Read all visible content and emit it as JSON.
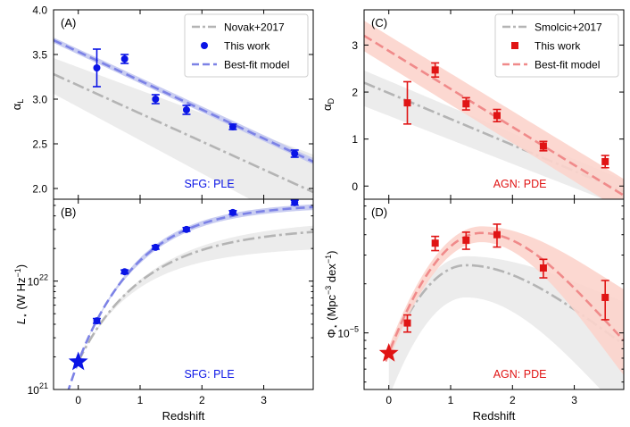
{
  "figure": {
    "xlabel": "Redshift"
  },
  "chart_data": [
    {
      "id": "A",
      "type": "scatter",
      "panel_label": "(A)",
      "annotation": "SFG: PLE",
      "ylabel": "αL",
      "ylabel_main": "α",
      "ylabel_sub": "L",
      "xlim": [
        -0.4,
        3.8
      ],
      "ylim": [
        1.88,
        4.0
      ],
      "yscale": "linear",
      "xticks": [
        0,
        1,
        2,
        3
      ],
      "yticks": [
        2.0,
        2.5,
        3.0,
        3.5,
        4.0
      ],
      "ytick_labels": [
        "2.0",
        "2.5",
        "3.0",
        "3.5",
        "4.0"
      ],
      "legend": [
        "Novak+2017",
        "This work",
        "Best-fit model"
      ],
      "ref": {
        "name": "Novak+2017",
        "x": [
          -0.4,
          3.8
        ],
        "y": [
          3.28,
          1.96
        ],
        "band_lo": [
          3.06,
          1.5
        ],
        "band_hi": [
          3.46,
          2.38
        ]
      },
      "fit": {
        "name": "Best-fit model",
        "x": [
          -0.4,
          3.8
        ],
        "y": [
          3.66,
          2.3
        ],
        "band_lo": [
          3.63,
          2.27
        ],
        "band_hi": [
          3.69,
          2.34
        ]
      },
      "points": {
        "name": "This work",
        "marker": "circle",
        "x": [
          0.3,
          0.75,
          1.25,
          1.75,
          2.5,
          3.5
        ],
        "y": [
          3.35,
          3.45,
          3.0,
          2.88,
          2.69,
          2.39
        ],
        "err": [
          0.21,
          0.05,
          0.05,
          0.05,
          0.03,
          0.04
        ]
      }
    },
    {
      "id": "B",
      "type": "scatter",
      "panel_label": "(B)",
      "annotation": "SFG: PLE",
      "ylabel": "L⋆ (W Hz⁻¹)",
      "ylabel_main": "L",
      "ylabel_sub": "⋆",
      "ylabel_unit": "(W Hz",
      "ylabel_sup": "−1",
      "ylabel_close": ")",
      "xlim": [
        -0.4,
        3.8
      ],
      "ylim": [
        1e+21,
        5.7e+22
      ],
      "yscale": "log",
      "xticks": [
        0,
        1,
        2,
        3
      ],
      "xtick_labels": [
        "0",
        "1",
        "2",
        "3"
      ],
      "ytick_major": [
        1e+21,
        1e+22
      ],
      "ytick_mantissa": [
        "10",
        "10"
      ],
      "ytick_exponent": [
        "21",
        "22"
      ],
      "ref": {
        "name": "Novak+2017",
        "exponent": 2.88,
        "p": 1.3,
        "l0": 1.8e+21,
        "l_max": 3.4e+22,
        "band_lo_max": 2.2e+22,
        "band_hi_max": 4e+22
      },
      "fit": {
        "name": "Best-fit model",
        "exponent": 3.55,
        "p": 1.3,
        "l0": 1.8e+21,
        "l_max": 5.35e+22,
        "band_frac": 0.06
      },
      "local_point": {
        "x": 0.0,
        "y": 1.8e+21,
        "marker": "star"
      },
      "points": {
        "name": "This work",
        "marker": "circle",
        "x": [
          0.3,
          0.75,
          1.25,
          1.75,
          2.5,
          3.5
        ],
        "y": [
          4.3e+21,
          1.22e+22,
          2.05e+22,
          3e+22,
          4.3e+22,
          5.3e+22
        ],
        "err_frac": [
          0.05,
          0.04,
          0.04,
          0.04,
          0.04,
          0.05
        ]
      }
    },
    {
      "id": "C",
      "type": "scatter",
      "panel_label": "(C)",
      "annotation": "AGN: PDE",
      "ylabel": "αD",
      "ylabel_main": "α",
      "ylabel_sub": "D",
      "xlim": [
        -0.4,
        3.8
      ],
      "ylim": [
        -0.28,
        3.75
      ],
      "yscale": "linear",
      "xticks": [
        0,
        1,
        2,
        3
      ],
      "yticks": [
        0,
        1,
        2,
        3
      ],
      "ytick_labels": [
        "0",
        "1",
        "2",
        "3"
      ],
      "legend": [
        "Smolcic+2017",
        "This work",
        "Best-fit model"
      ],
      "ref": {
        "name": "Smolcic+2017",
        "x": [
          -0.4,
          3.8
        ],
        "y": [
          2.2,
          -0.12
        ],
        "band_lo": [
          1.7,
          -0.45
        ],
        "band_hi": [
          2.46,
          0.13
        ]
      },
      "fit": {
        "name": "Best-fit model",
        "x": [
          -0.4,
          3.8
        ],
        "y": [
          3.2,
          -0.2
        ],
        "band_lo": [
          2.87,
          -0.55
        ],
        "band_hi": [
          3.52,
          0.15
        ]
      },
      "points": {
        "name": "This work",
        "marker": "square",
        "x": [
          0.3,
          0.75,
          1.25,
          1.75,
          2.5,
          3.5
        ],
        "y": [
          1.77,
          2.47,
          1.75,
          1.5,
          0.85,
          0.52
        ],
        "err": [
          0.45,
          0.15,
          0.13,
          0.13,
          0.1,
          0.13
        ]
      }
    },
    {
      "id": "D",
      "type": "scatter",
      "panel_label": "(D)",
      "annotation": "AGN: PDE",
      "ylabel": "Φ⋆ (Mpc⁻³ dex⁻¹)",
      "ylabel_main": "Φ",
      "ylabel_sub": "⋆",
      "ylabel_unit": "(Mpc",
      "ylabel_sup": "−3",
      "ylabel_mid": " dex",
      "ylabel_sup2": "−1",
      "ylabel_close": ")",
      "xlim": [
        -0.4,
        3.8
      ],
      "ylim": [
        4.5e-06,
        6.6e-05
      ],
      "yscale": "log",
      "xticks": [
        0,
        1,
        2,
        3
      ],
      "xtick_labels": [
        "0",
        "1",
        "2",
        "3"
      ],
      "ytick_major": [
        1e-05
      ],
      "ytick_mantissa": [
        "10"
      ],
      "ytick_exponent": [
        "−5"
      ],
      "ref": {
        "name": "Smolcic+2017",
        "phi0": 7.5e-06,
        "peak": 2.6e-05,
        "z_peak": 1.25,
        "tail_end": 8.5e-06,
        "band_lo": [
          4e-06,
          1.65e-05,
          3.2e-06
        ],
        "band_hi": [
          8e-06,
          2.95e-05,
          1.55e-05
        ]
      },
      "fit": {
        "name": "Best-fit model",
        "phi0": 7.5e-06,
        "peak": 4.1e-05,
        "z_peak": 1.5,
        "tail_end": 9e-06,
        "band_lo": [
          6.8e-06,
          3.6e-05,
          5.5e-06
        ],
        "band_hi": [
          8.2e-06,
          4.5e-05,
          1.85e-05
        ]
      },
      "local_point": {
        "x": 0.0,
        "y": 7.5e-06,
        "marker": "star"
      },
      "points": {
        "name": "This work",
        "marker": "square",
        "x": [
          0.3,
          0.75,
          1.25,
          1.75,
          2.5,
          3.5
        ],
        "y": [
          1.15e-05,
          3.55e-05,
          3.7e-05,
          4e-05,
          2.5e-05,
          1.65e-05
        ],
        "err_frac": [
          0.12,
          0.1,
          0.12,
          0.16,
          0.13,
          0.27
        ]
      }
    }
  ],
  "colors": {
    "blue": "#0a14e6",
    "blue_fit": "#7c82e6",
    "blue_band": "#c3c8f0",
    "red": "#e01414",
    "red_fit": "#f08a8a",
    "red_band": "#fcd4cc",
    "gray_line": "#b4b4b4",
    "gray_band": "#ececec"
  }
}
